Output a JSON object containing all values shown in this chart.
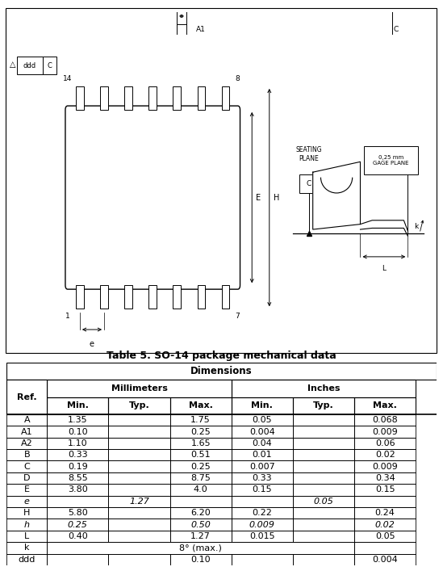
{
  "title": "Table 5. SO-14 package mechanical data",
  "rows": [
    [
      "A",
      "1.35",
      "",
      "1.75",
      "0.05",
      "",
      "0.068"
    ],
    [
      "A1",
      "0.10",
      "",
      "0.25",
      "0.004",
      "",
      "0.009"
    ],
    [
      "A2",
      "1.10",
      "",
      "1.65",
      "0.04",
      "",
      "0.06"
    ],
    [
      "B",
      "0.33",
      "",
      "0.51",
      "0.01",
      "",
      "0.02"
    ],
    [
      "C",
      "0.19",
      "",
      "0.25",
      "0.007",
      "",
      "0.009"
    ],
    [
      "D",
      "8.55",
      "",
      "8.75",
      "0.33",
      "",
      "0.34"
    ],
    [
      "E",
      "3.80",
      "",
      "4.0",
      "0.15",
      "",
      "0.15"
    ],
    [
      "e",
      "",
      "1.27",
      "",
      "",
      "0.05",
      ""
    ],
    [
      "H",
      "5.80",
      "",
      "6.20",
      "0.22",
      "",
      "0.24"
    ],
    [
      "h",
      "0.25",
      "",
      "0.50",
      "0.009",
      "",
      "0.02"
    ],
    [
      "L",
      "0.40",
      "",
      "1.27",
      "0.015",
      "",
      "0.05"
    ],
    [
      "k",
      "",
      "",
      "8° (max.)",
      "",
      "",
      ""
    ],
    [
      "ddd",
      "",
      "",
      "0.10",
      "",
      "",
      "0.004"
    ]
  ],
  "bg_color": "#ffffff",
  "header_bg": "#ffffff",
  "border_color": "#000000",
  "text_color": "#000000",
  "italic_rows": [
    "e",
    "h"
  ],
  "k_row": "k",
  "ddd_row": "ddd"
}
